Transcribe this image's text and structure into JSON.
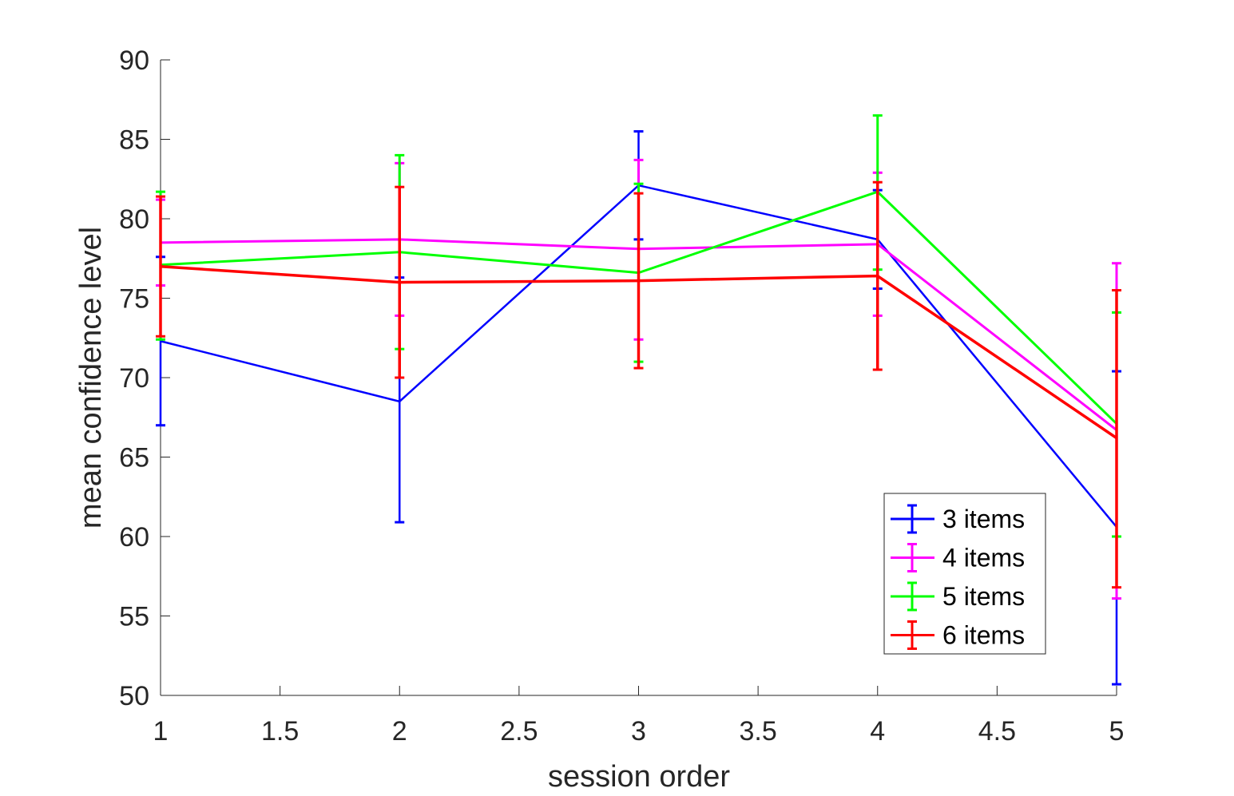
{
  "chart_data": {
    "type": "line",
    "title": "",
    "xlabel": "session order",
    "ylabel": "mean confidence level",
    "xlim": [
      1,
      5
    ],
    "ylim": [
      50,
      90
    ],
    "xticks": [
      1,
      1.5,
      2,
      2.5,
      3,
      3.5,
      4,
      4.5,
      5
    ],
    "xtick_labels": [
      "1",
      "1.5",
      "2",
      "2.5",
      "3",
      "3.5",
      "4",
      "4.5",
      "5"
    ],
    "yticks": [
      50,
      55,
      60,
      65,
      70,
      75,
      80,
      85,
      90
    ],
    "ytick_labels": [
      "50",
      "55",
      "60",
      "65",
      "70",
      "75",
      "80",
      "85",
      "90"
    ],
    "grid": false,
    "legend_position": "bottom-right",
    "x": [
      1,
      2,
      3,
      4,
      5
    ],
    "series": [
      {
        "name": "3 items",
        "color": "#0000ff",
        "y": [
          72.3,
          68.5,
          82.1,
          78.7,
          60.6
        ],
        "lower": [
          67.0,
          60.9,
          78.7,
          75.6,
          50.7
        ],
        "upper": [
          77.6,
          76.3,
          85.5,
          81.8,
          70.4
        ]
      },
      {
        "name": "4 items",
        "color": "#ff00ff",
        "y": [
          78.5,
          78.7,
          78.1,
          78.4,
          66.7
        ],
        "lower": [
          75.8,
          73.9,
          72.4,
          73.9,
          56.1
        ],
        "upper": [
          81.2,
          83.5,
          83.7,
          82.9,
          77.2
        ]
      },
      {
        "name": "5 items",
        "color": "#00ff00",
        "y": [
          77.1,
          77.9,
          76.6,
          81.7,
          67.1
        ],
        "lower": [
          72.4,
          71.8,
          71.0,
          76.8,
          60.0
        ],
        "upper": [
          81.7,
          84.0,
          82.2,
          86.5,
          74.1
        ]
      },
      {
        "name": "6 items",
        "color": "#ff0000",
        "y": [
          77.0,
          76.0,
          76.1,
          76.4,
          66.2
        ],
        "lower": [
          72.6,
          70.0,
          70.6,
          70.5,
          56.8
        ],
        "upper": [
          81.4,
          82.0,
          81.6,
          82.3,
          75.5
        ]
      }
    ]
  }
}
